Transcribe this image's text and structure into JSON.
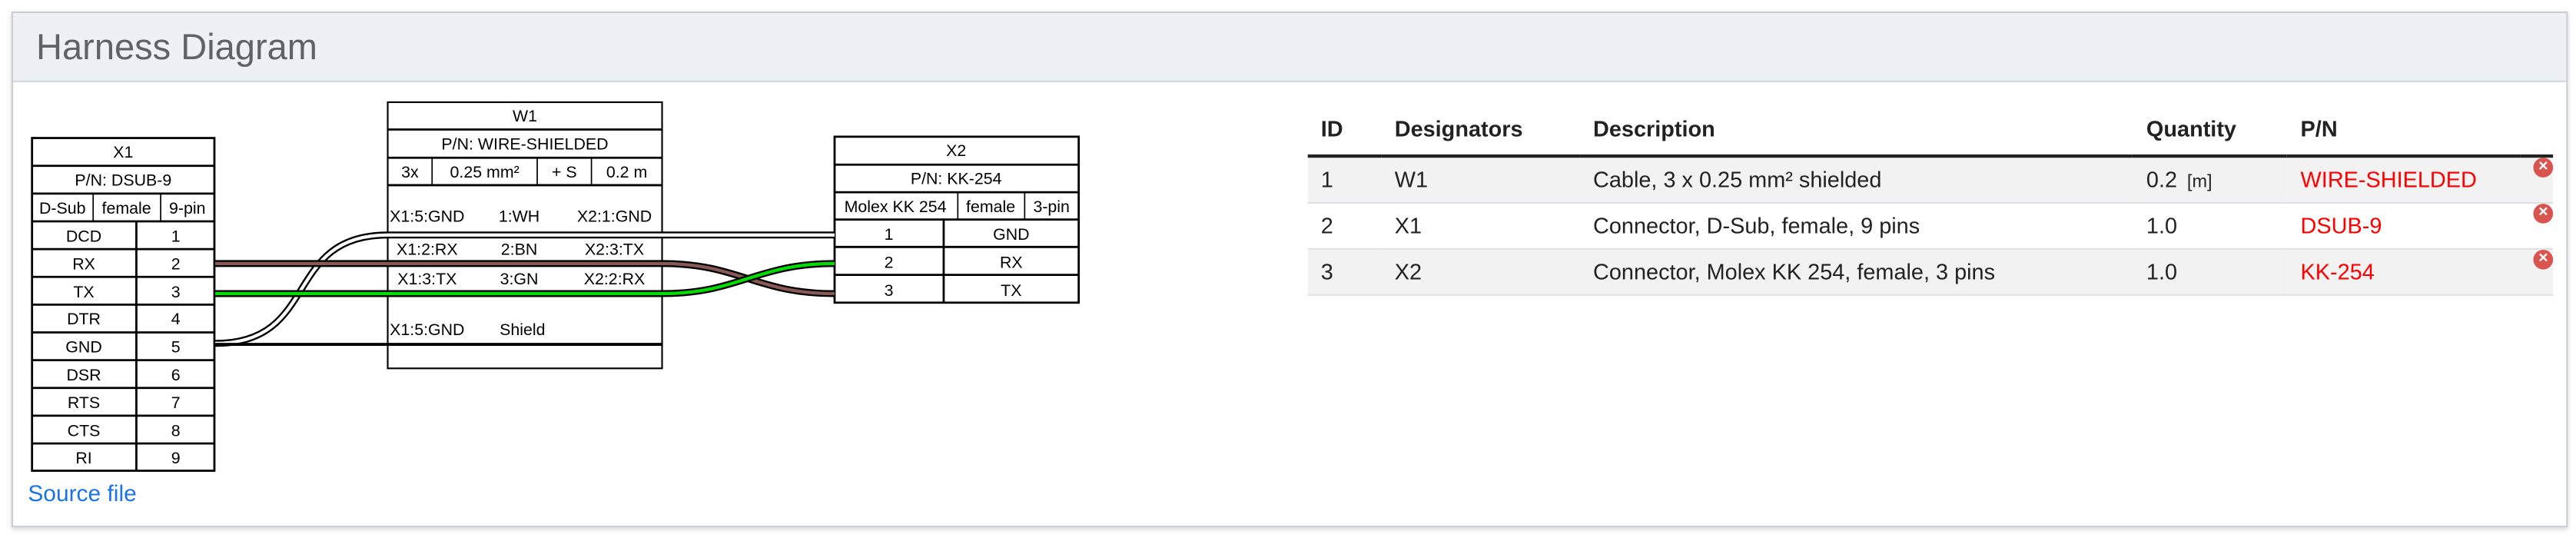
{
  "header": {
    "title": "Harness Diagram"
  },
  "diagram": {
    "x1": {
      "name": "X1",
      "pn": "P/N: DSUB-9",
      "type": "D-Sub",
      "gender": "female",
      "pincount": "9-pin",
      "pins": [
        {
          "label": "DCD",
          "num": "1"
        },
        {
          "label": "RX",
          "num": "2"
        },
        {
          "label": "TX",
          "num": "3"
        },
        {
          "label": "DTR",
          "num": "4"
        },
        {
          "label": "GND",
          "num": "5"
        },
        {
          "label": "DSR",
          "num": "6"
        },
        {
          "label": "RTS",
          "num": "7"
        },
        {
          "label": "CTS",
          "num": "8"
        },
        {
          "label": "RI",
          "num": "9"
        }
      ]
    },
    "w1": {
      "name": "W1",
      "pn": "P/N: WIRE-SHIELDED",
      "count": "3x",
      "gauge": "0.25 mm²",
      "shield": "+ S",
      "length": "0.2 m",
      "wires": [
        {
          "from": "X1:5:GND",
          "color": "1:WH",
          "to": "X2:1:GND"
        },
        {
          "from": "X1:2:RX",
          "color": "2:BN",
          "to": "X2:3:TX"
        },
        {
          "from": "X1:3:TX",
          "color": "3:GN",
          "to": "X2:2:RX"
        }
      ],
      "shield_row": {
        "from": "X1:5:GND",
        "label": "Shield"
      }
    },
    "x2": {
      "name": "X2",
      "pn": "P/N: KK-254",
      "type": "Molex KK 254",
      "gender": "female",
      "pincount": "3-pin",
      "pins": [
        {
          "num": "1",
          "label": "GND"
        },
        {
          "num": "2",
          "label": "RX"
        },
        {
          "num": "3",
          "label": "TX"
        }
      ]
    },
    "wire_colors": {
      "WH": "#ffffff",
      "BN": "#895956",
      "GN": "#00dd00"
    }
  },
  "source_link": "Source file",
  "bom": {
    "columns": [
      "ID",
      "Designators",
      "Description",
      "Quantity",
      "P/N"
    ],
    "rows": [
      {
        "id": "1",
        "designators": "W1",
        "description": "Cable, 3 x 0.25 mm² shielded",
        "quantity": "0.2",
        "unit": "[m]",
        "pn": "WIRE-SHIELDED"
      },
      {
        "id": "2",
        "designators": "X1",
        "description": "Connector, D-Sub, female, 9 pins",
        "quantity": "1.0",
        "unit": "",
        "pn": "DSUB-9"
      },
      {
        "id": "3",
        "designators": "X2",
        "description": "Connector, Molex KK 254, female, 3 pins",
        "quantity": "1.0",
        "unit": "",
        "pn": "KK-254"
      }
    ],
    "remove_icon": "×"
  }
}
